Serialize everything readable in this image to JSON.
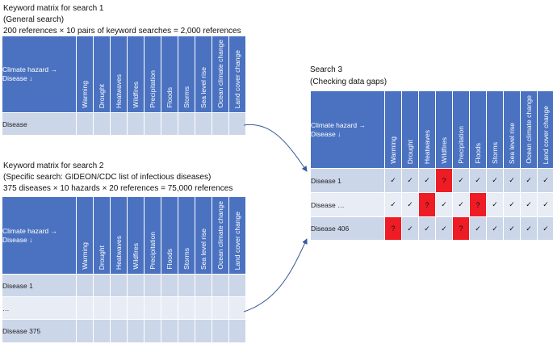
{
  "search1": {
    "title": "Keyword matrix for search 1",
    "subtitle": "(General search)",
    "formula": "200 references × 10 pairs of keyword searches = 2,000 references",
    "corner_line1": "Climate hazard →",
    "corner_line2": "Disease ↓",
    "rows": [
      "Disease"
    ]
  },
  "search2": {
    "title": "Keyword matrix for search 2",
    "subtitle": "(Specific search: GIDEON/CDC list of infectious diseases)",
    "formula": "375 diseases × 10 hazards × 20 references = 75,000 references",
    "corner_line1": "Climate hazard →",
    "corner_line2": "Disease ↓",
    "rows": [
      "Disease 1",
      "…",
      "Disease 375"
    ]
  },
  "search3": {
    "title": "Search 3",
    "subtitle": "(Checking data gaps)",
    "corner_line1": "Climate hazard →",
    "corner_line2": "Disease ↓",
    "check_symbol": "✓",
    "gap_symbol": "?",
    "rows": [
      {
        "label": "Disease 1",
        "cells": [
          "check",
          "check",
          "check",
          "gap",
          "check",
          "check",
          "check",
          "check",
          "check",
          "check"
        ]
      },
      {
        "label": "Disease …",
        "cells": [
          "check",
          "check",
          "gap",
          "check",
          "check",
          "gap",
          "check",
          "check",
          "check",
          "check"
        ]
      },
      {
        "label": "Disease 406",
        "cells": [
          "gap",
          "check",
          "check",
          "check",
          "gap",
          "check",
          "check",
          "check",
          "check",
          "check"
        ]
      }
    ]
  },
  "hazards": [
    "Warming",
    "Drought",
    "Heatwaves",
    "Wildfires",
    "Precipitation",
    "Floods",
    "Storms",
    "Sea level rise",
    "Ocean climate change",
    "Land cover change"
  ],
  "colors": {
    "header_blue": "#4a72c0",
    "row_shade": "#ccd6e9",
    "row_light": "#e8ecf5",
    "gap_red": "#ee1c25",
    "arrow": "#3a5a9a"
  }
}
